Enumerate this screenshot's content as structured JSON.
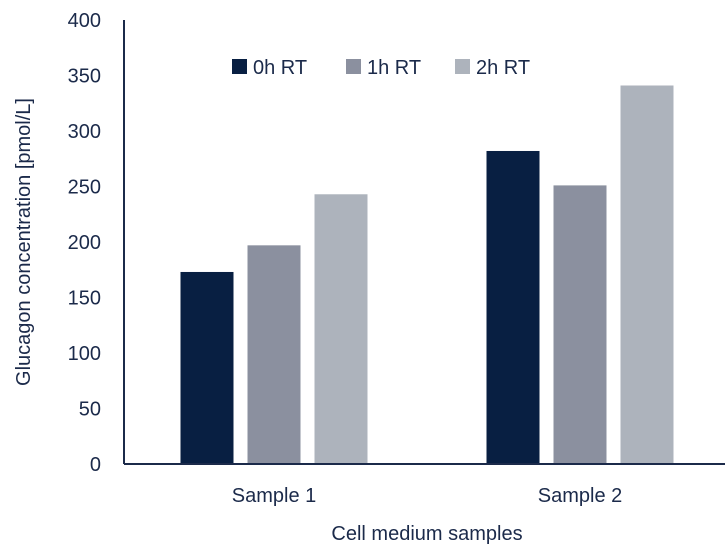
{
  "chart_data": {
    "type": "bar",
    "categories": [
      "Sample 1",
      "Sample 2"
    ],
    "series": [
      {
        "name": "0h RT",
        "values": [
          173,
          282
        ],
        "color": "#081f42"
      },
      {
        "name": "1h RT",
        "values": [
          197,
          251
        ],
        "color": "#8b909f"
      },
      {
        "name": "2h RT",
        "values": [
          243,
          341
        ],
        "color": "#adb3bc"
      }
    ],
    "title": "",
    "xlabel": "Cell medium samples",
    "ylabel": "Glucagon concentration [pmol/L]",
    "ylim": [
      0,
      400
    ],
    "yticks": [
      "0",
      "50",
      "100",
      "150",
      "200",
      "250",
      "300",
      "350",
      "400"
    ],
    "grid": false,
    "legend_position": "top-center"
  }
}
